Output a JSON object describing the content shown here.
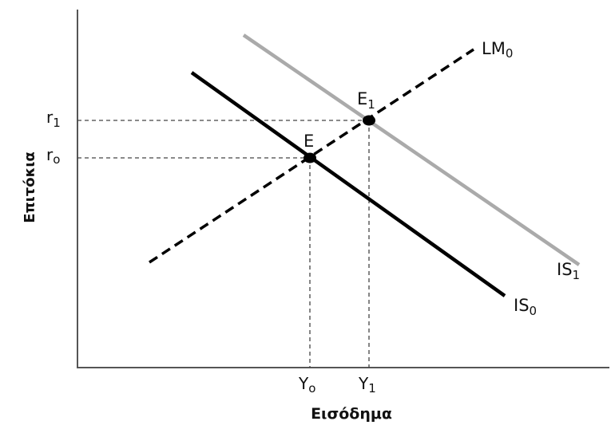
{
  "diagram": {
    "y_axis_title": "Επιτόκια",
    "x_axis_title": "Εισόδημα",
    "curves": {
      "lm0": {
        "name": "LM",
        "sub": "0"
      },
      "is1": {
        "name": "IS",
        "sub": "1"
      },
      "is0": {
        "name": "IS",
        "sub": "0"
      }
    },
    "points": {
      "e": {
        "name": "E",
        "sub": ""
      },
      "e1": {
        "name": "E",
        "sub": "1"
      }
    },
    "y_ticks": {
      "r1": {
        "name": "r",
        "sub": "1"
      },
      "r0": {
        "name": "r",
        "sub": "o"
      }
    },
    "x_ticks": {
      "y0": {
        "name": "Y",
        "sub": "o"
      },
      "y1": {
        "name": "Y",
        "sub": "1"
      }
    },
    "colors": {
      "axis": "#555555",
      "is0": "#000000",
      "is1": "#aaaaaa",
      "lm0": "#000000",
      "guides": "#444444"
    }
  }
}
